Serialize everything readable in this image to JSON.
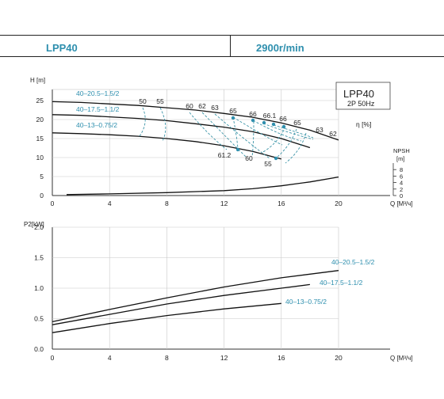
{
  "header": {
    "model": "LPP40",
    "speed": "2900r/min"
  },
  "colors": {
    "accent": "#2e8fae",
    "curve": "#111111",
    "dashed": "#3d95a8"
  },
  "chart_data": [
    {
      "type": "line",
      "title": "LPP40",
      "subtitle": "2P 50Hz",
      "xlabel": "Q [M³/ч]",
      "ylabel": "H [m]",
      "xlim": [
        0,
        20
      ],
      "ylim": [
        0,
        25
      ],
      "x_ticks": [
        "0",
        "4",
        "8",
        "12",
        "16",
        "20"
      ],
      "y_ticks": [
        "0",
        "5",
        "10",
        "15",
        "20",
        "25"
      ],
      "grid": true,
      "eff_label": "η [%]",
      "npsh_label": "NPSH",
      "npsh_unit": "[m]",
      "npsh_ticks": [
        "0",
        "2",
        "4",
        "6",
        "8"
      ],
      "series": [
        {
          "name": "40–20.5–1.5/2",
          "x": [
            0,
            2,
            4,
            6,
            8,
            10,
            12,
            14,
            16,
            18,
            20
          ],
          "values": [
            24.7,
            24.5,
            24.1,
            23.7,
            23.1,
            22.5,
            21.6,
            20.6,
            19.1,
            17.2,
            14.6
          ]
        },
        {
          "name": "40–17.5–1.1/2",
          "x": [
            0,
            2,
            4,
            6,
            8,
            10,
            12,
            14,
            16,
            18
          ],
          "values": [
            21.3,
            21.1,
            20.7,
            20.3,
            19.7,
            18.9,
            18.0,
            16.8,
            15.0,
            12.6
          ]
        },
        {
          "name": "40–13–0.75/2",
          "x": [
            0,
            2,
            4,
            6,
            8,
            10,
            12,
            14,
            16
          ],
          "values": [
            16.5,
            16.3,
            16.0,
            15.6,
            15.0,
            14.2,
            13.1,
            11.6,
            9.6
          ]
        },
        {
          "name": "NPSH",
          "x": [
            1,
            4,
            8,
            12,
            14,
            16,
            18,
            20
          ],
          "values": [
            0.3,
            0.5,
            0.9,
            1.5,
            2.1,
            3.0,
            4.2,
            5.7
          ]
        }
      ],
      "efficiency_labels": [
        "50",
        "55",
        "60",
        "62",
        "63",
        "65",
        "66",
        "66.1",
        "66",
        "65",
        "63",
        "62",
        "61.2",
        "60",
        "55"
      ]
    },
    {
      "type": "line",
      "xlabel": "Q [M³/ч]",
      "ylabel": "P2[kW]",
      "xlim": [
        0,
        20
      ],
      "ylim": [
        0,
        2.0
      ],
      "x_ticks": [
        "0",
        "4",
        "8",
        "12",
        "16",
        "20"
      ],
      "y_ticks": [
        "0.0",
        "0.5",
        "1.0",
        "1.5",
        "2.0"
      ],
      "grid": true,
      "series": [
        {
          "name": "40–20.5–1.5/2",
          "x": [
            0,
            4,
            8,
            12,
            16,
            20
          ],
          "values": [
            0.45,
            0.65,
            0.84,
            1.02,
            1.17,
            1.29
          ]
        },
        {
          "name": "40–17.5–1.1/2",
          "x": [
            0,
            4,
            8,
            12,
            16,
            18
          ],
          "values": [
            0.4,
            0.57,
            0.74,
            0.88,
            1.0,
            1.06
          ]
        },
        {
          "name": "40–13–0.75/2",
          "x": [
            0,
            4,
            8,
            12,
            16
          ],
          "values": [
            0.27,
            0.42,
            0.55,
            0.66,
            0.75
          ]
        }
      ]
    }
  ]
}
